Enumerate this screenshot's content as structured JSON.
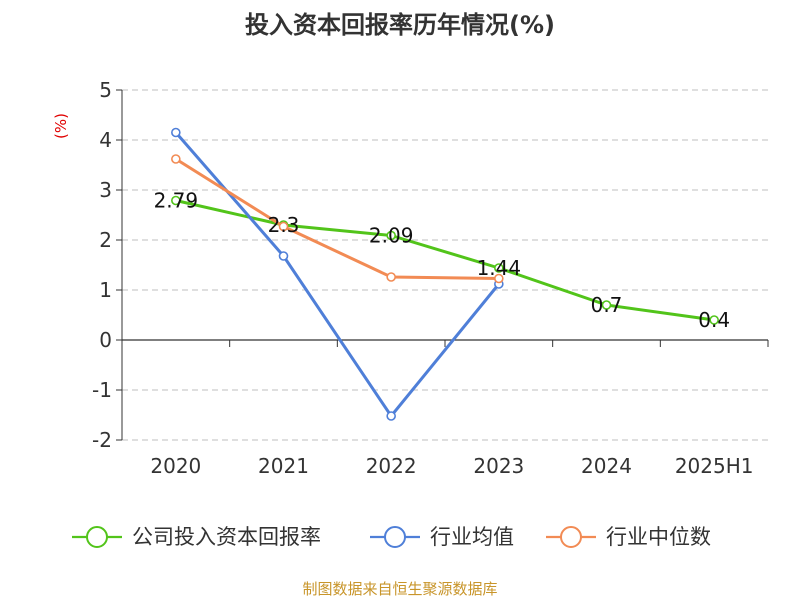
{
  "chart_data": {
    "type": "line",
    "title": "投入资本回报率历年情况(%)",
    "ylabel": "(%)",
    "categories": [
      "2020",
      "2021",
      "2022",
      "2023",
      "2024",
      "2025H1"
    ],
    "ylim": [
      -2,
      5
    ],
    "yticks": [
      5,
      4,
      3,
      2,
      1,
      0,
      -1,
      -2
    ],
    "grid": true,
    "legend_position": "bottom",
    "series": [
      {
        "name": "公司投入资本回报率",
        "color": "#52c41a",
        "values": [
          2.79,
          2.3,
          2.09,
          1.44,
          0.7,
          0.4
        ],
        "labels": [
          "2.79",
          "2.3",
          "2.09",
          "1.44",
          "0.7",
          "0.4"
        ]
      },
      {
        "name": "行业均值",
        "color": "#4f7fd8",
        "values": [
          4.15,
          1.68,
          -1.52,
          1.12,
          null,
          null
        ]
      },
      {
        "name": "行业中位数",
        "color": "#f28b54",
        "values": [
          3.62,
          2.27,
          1.26,
          1.23,
          null,
          null
        ]
      }
    ],
    "source": "制图数据来自恒生聚源数据库"
  }
}
